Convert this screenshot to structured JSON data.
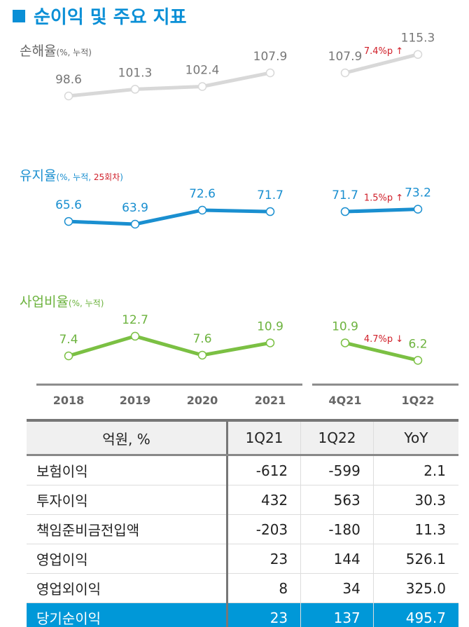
{
  "title": "순이익 및 주요 지표",
  "chart_data": [
    {
      "type": "line",
      "name": "손해율",
      "unit": "(%, 누적)",
      "color": "#d8d8d8",
      "label_color": "#777777",
      "annual": {
        "x": [
          "2018",
          "2019",
          "2020",
          "2021"
        ],
        "values": [
          98.6,
          101.3,
          102.4,
          107.9
        ]
      },
      "quarterly": {
        "x": [
          "4Q21",
          "1Q22"
        ],
        "values": [
          107.9,
          115.3
        ]
      },
      "change": "7.4%p",
      "change_dir": "up"
    },
    {
      "type": "line",
      "name": "유지율",
      "unit": "(%, 누적, ",
      "unit_extra": "25회차",
      "unit_close": ")",
      "color": "#1a8fd0",
      "label_color": "#1a8fd0",
      "annual": {
        "x": [
          "2018",
          "2019",
          "2020",
          "2021"
        ],
        "values": [
          65.6,
          63.9,
          72.6,
          71.7
        ]
      },
      "quarterly": {
        "x": [
          "4Q21",
          "1Q22"
        ],
        "values": [
          71.7,
          73.2
        ]
      },
      "change": "1.5%p",
      "change_dir": "up"
    },
    {
      "type": "line",
      "name": "사업비율",
      "unit": "(%, 누적)",
      "color": "#7bc043",
      "label_color": "#6db33f",
      "annual": {
        "x": [
          "2018",
          "2019",
          "2020",
          "2021"
        ],
        "values": [
          7.4,
          12.7,
          7.6,
          10.9
        ]
      },
      "quarterly": {
        "x": [
          "4Q21",
          "1Q22"
        ],
        "values": [
          10.9,
          6.2
        ]
      },
      "change": "4.7%p",
      "change_dir": "down"
    }
  ],
  "x_labels": [
    "2018",
    "2019",
    "2020",
    "2021",
    "4Q21",
    "1Q22"
  ],
  "table": {
    "headers": [
      "억원, %",
      "1Q21",
      "1Q22",
      "YoY"
    ],
    "rows": [
      [
        "보험이익",
        "-612",
        "-599",
        "2.1"
      ],
      [
        "투자이익",
        "432",
        "563",
        "30.3"
      ],
      [
        "책임준비금전입액",
        "-203",
        "-180",
        "11.3"
      ],
      [
        "영업이익",
        "23",
        "144",
        "526.1"
      ],
      [
        "영업외이익",
        "8",
        "34",
        "325.0"
      ],
      [
        "당기순이익",
        "23",
        "137",
        "495.7"
      ]
    ]
  }
}
